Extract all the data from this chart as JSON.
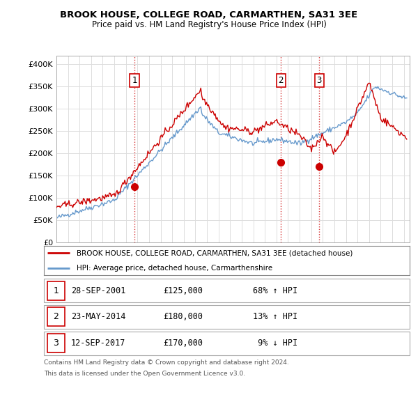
{
  "title": "BROOK HOUSE, COLLEGE ROAD, CARMARTHEN, SA31 3EE",
  "subtitle": "Price paid vs. HM Land Registry's House Price Index (HPI)",
  "background_color": "#ffffff",
  "grid_color": "#dddddd",
  "sale_color": "#cc0000",
  "hpi_color": "#6699cc",
  "sale_dates": [
    2001.74,
    2014.39,
    2017.7
  ],
  "sale_prices": [
    125000,
    180000,
    170000
  ],
  "sale_labels": [
    "1",
    "2",
    "3"
  ],
  "legend_sale": "BROOK HOUSE, COLLEGE ROAD, CARMARTHEN, SA31 3EE (detached house)",
  "legend_hpi": "HPI: Average price, detached house, Carmarthenshire",
  "table_data": [
    [
      "1",
      "28-SEP-2001",
      "£125,000",
      "68% ↑ HPI"
    ],
    [
      "2",
      "23-MAY-2014",
      "£180,000",
      "13% ↑ HPI"
    ],
    [
      "3",
      "12-SEP-2017",
      "£170,000",
      " 9% ↓ HPI"
    ]
  ],
  "footnote1": "Contains HM Land Registry data © Crown copyright and database right 2024.",
  "footnote2": "This data is licensed under the Open Government Licence v3.0.",
  "ylim": [
    0,
    420000
  ],
  "yticks": [
    0,
    50000,
    100000,
    150000,
    200000,
    250000,
    300000,
    350000,
    400000
  ],
  "ytick_labels": [
    "£0",
    "£50K",
    "£100K",
    "£150K",
    "£200K",
    "£250K",
    "£300K",
    "£350K",
    "£400K"
  ],
  "xlim_start": 1995.0,
  "xlim_end": 2025.5
}
